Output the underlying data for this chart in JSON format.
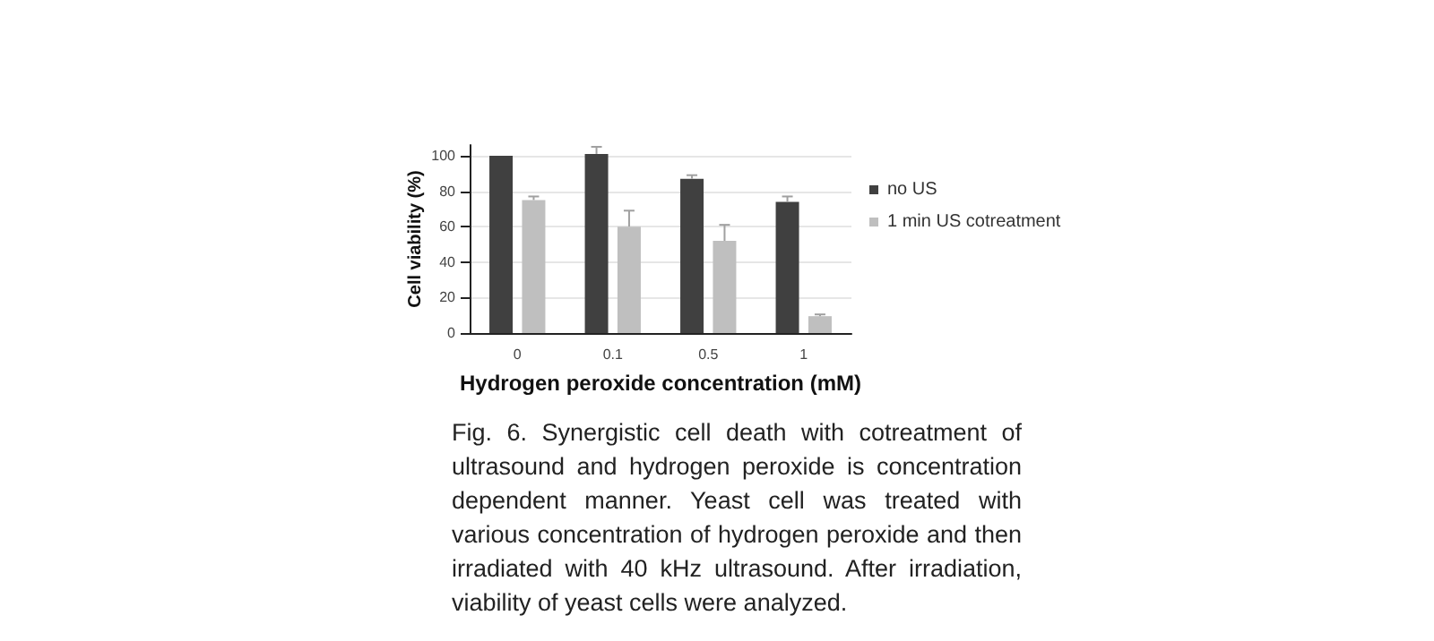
{
  "chart_data": {
    "type": "bar",
    "xlabel": "Hydrogen peroxide concentration (mM)",
    "ylabel": "Cell viability (%)",
    "categories": [
      "0",
      "0.1",
      "0.5",
      "1"
    ],
    "series": [
      {
        "name": "no US",
        "color": "#404040",
        "values": [
          100,
          101,
          87,
          74
        ],
        "errors": [
          null,
          [
            101,
            105
          ],
          [
            87,
            89
          ],
          [
            74,
            77
          ]
        ]
      },
      {
        "name": "1 min US cotreatment",
        "color": "#bfbfbf",
        "values": [
          75,
          60,
          52,
          9.5
        ],
        "errors": [
          [
            75,
            77
          ],
          [
            60,
            69
          ],
          [
            52,
            61
          ],
          [
            9.5,
            10.5
          ]
        ]
      }
    ],
    "ylim": [
      0,
      106
    ],
    "yticks": [
      0,
      20,
      40,
      60,
      80,
      100
    ],
    "grid": "y",
    "legend": "right",
    "annotations": [
      "Fig. 6. Synergistic cell death with cotreatment of ultrasound and hydrogen peroxide is concentration dependent manner. Yeast cell was treated with various concentration of hydrogen peroxide and then irradiated with 40 kHz ultrasound. After irradiation, viability of yeast cells were analyzed."
    ]
  }
}
